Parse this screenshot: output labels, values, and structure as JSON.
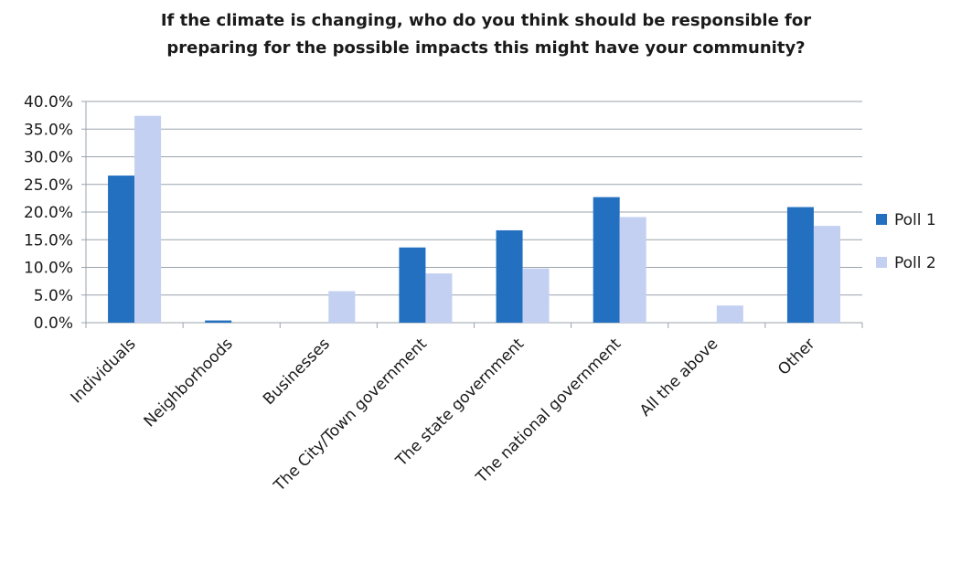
{
  "chart_data": {
    "type": "bar",
    "title_lines": [
      "If the climate is changing, who do you think should be responsible for",
      "preparing for the possible impacts this might have your community?"
    ],
    "categories": [
      "Individuals",
      "Neighborhoods",
      "Businesses",
      "The City/Town government",
      "The state government",
      "The national government",
      "All the above",
      "Other"
    ],
    "series": [
      {
        "name": "Poll 1",
        "color": "#2470c0",
        "values": [
          26.6,
          0.4,
          0.0,
          13.6,
          16.7,
          22.7,
          0.0,
          20.9
        ]
      },
      {
        "name": "Poll 2",
        "color": "#c3d0f2",
        "values": [
          37.4,
          0.0,
          5.7,
          8.9,
          9.8,
          19.1,
          3.1,
          17.5
        ]
      }
    ],
    "yticks": [
      "0.0%",
      "5.0%",
      "10.0%",
      "15.0%",
      "20.0%",
      "25.0%",
      "30.0%",
      "35.0%",
      "40.0%"
    ],
    "ylim": [
      0,
      40
    ],
    "grid": true,
    "legend_position": "right",
    "axis_color": "#9aa3ad",
    "grid_color": "#9aa3ad"
  }
}
